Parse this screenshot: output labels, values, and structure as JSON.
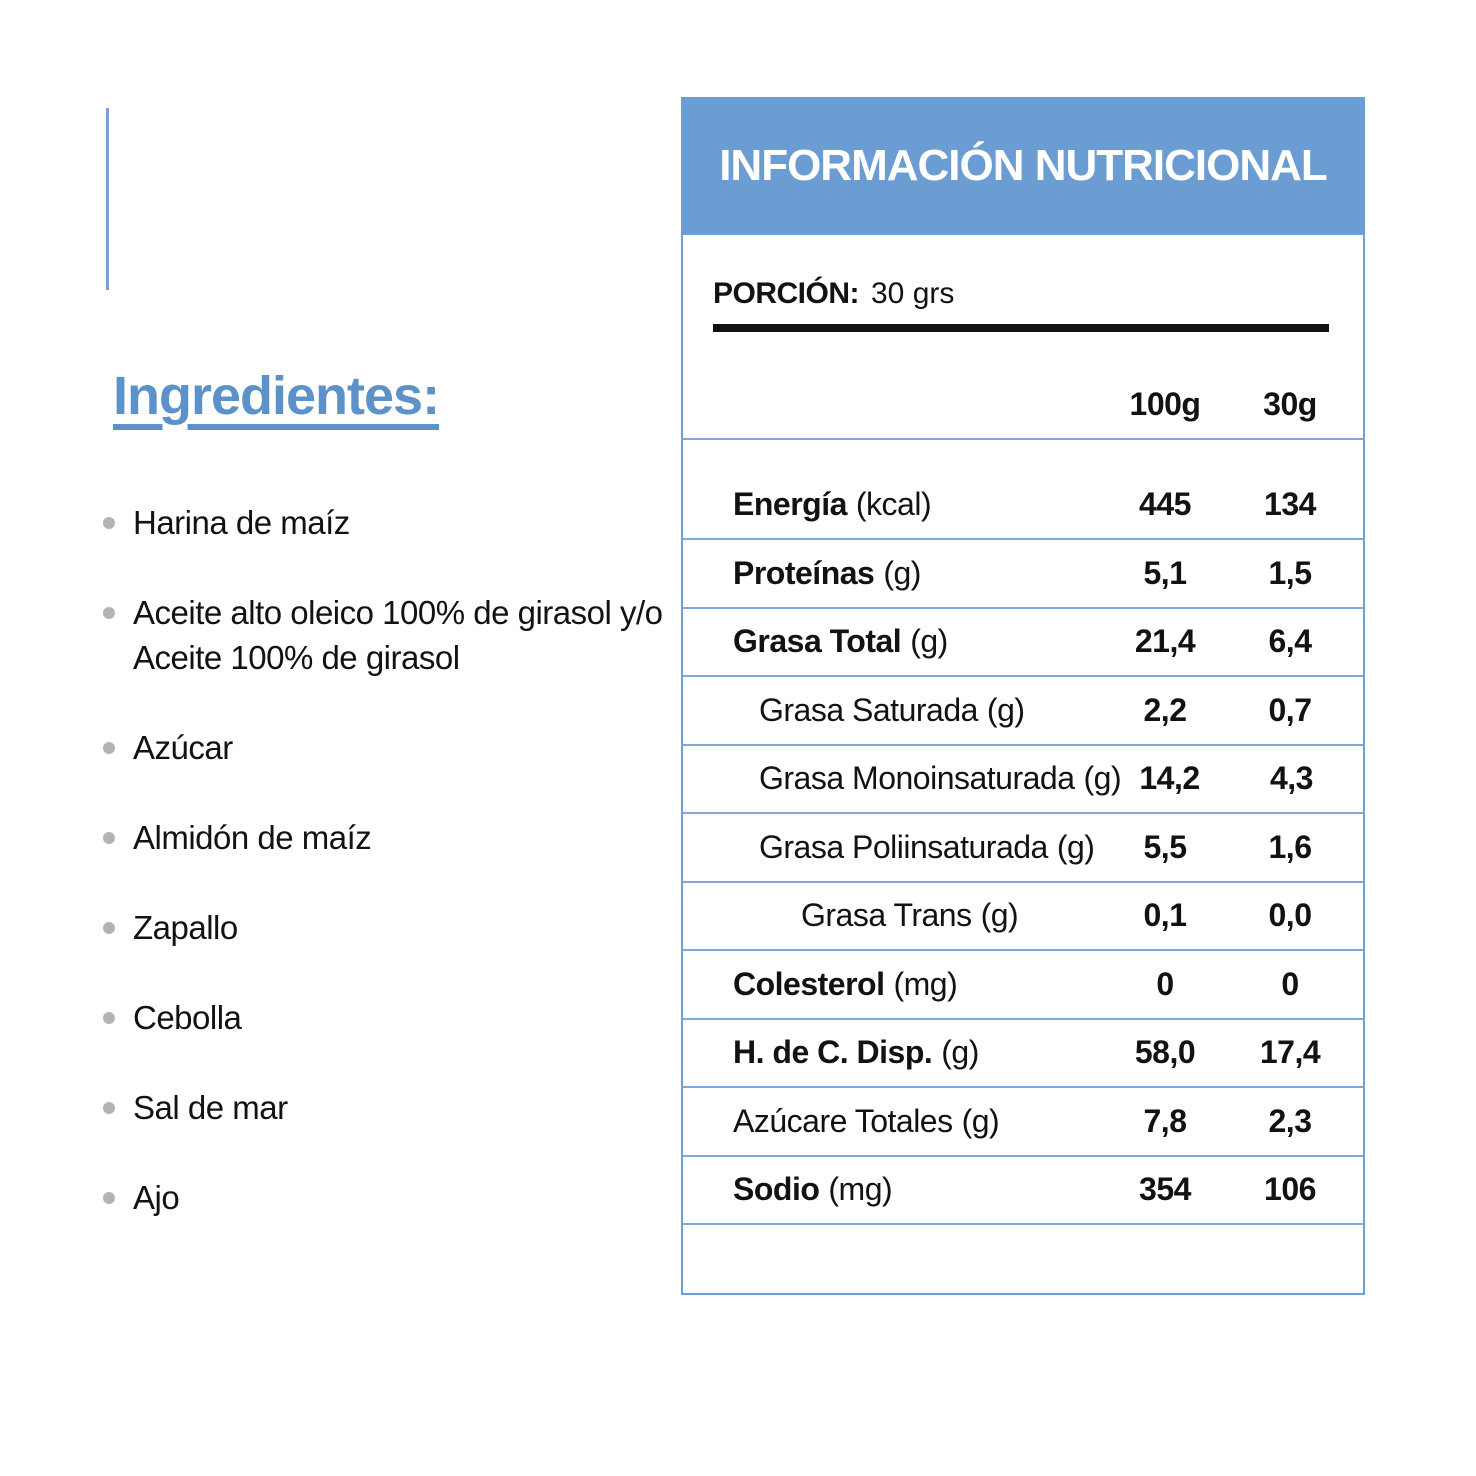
{
  "colors": {
    "header_blue": "#6b9dd2",
    "heading_blue": "#5d92c9",
    "divider_blue": "#7fa9d9",
    "border_blue": "#6fa0d3",
    "accent_line_blue": "#7ba2cc",
    "bullet_gray": "#b3b3b6",
    "text_black": "#121212"
  },
  "ingredients": {
    "title": "Ingredientes:",
    "items": [
      "Harina de maíz",
      "Aceite alto oleico 100% de girasol y/o Aceite 100% de girasol",
      "Azúcar",
      "Almidón de maíz",
      "Zapallo",
      "Cebolla",
      "Sal de mar",
      "Ajo"
    ]
  },
  "nutrition": {
    "title": "INFORMACIÓN NUTRICIONAL",
    "portion_label": "PORCIÓN:",
    "portion_value": "30 grs",
    "columns": [
      "100g",
      "30g"
    ],
    "rows": [
      {
        "name": "Energía",
        "unit": "(kcal)",
        "v100": "445",
        "v30": "134",
        "bold": true,
        "indent": 0
      },
      {
        "name": "Proteínas",
        "unit": "(g)",
        "v100": "5,1",
        "v30": "1,5",
        "bold": true,
        "indent": 0
      },
      {
        "name": "Grasa Total",
        "unit": "(g)",
        "v100": "21,4",
        "v30": "6,4",
        "bold": true,
        "indent": 0
      },
      {
        "name": "Grasa Saturada",
        "unit": "(g)",
        "v100": "2,2",
        "v30": "0,7",
        "bold": false,
        "indent": 1
      },
      {
        "name": "Grasa Monoinsaturada",
        "unit": "(g)",
        "v100": "14,2",
        "v30": "4,3",
        "bold": false,
        "indent": 1
      },
      {
        "name": "Grasa Poliinsaturada",
        "unit": "(g)",
        "v100": "5,5",
        "v30": "1,6",
        "bold": false,
        "indent": 1
      },
      {
        "name": "Grasa Trans",
        "unit": "(g)",
        "v100": "0,1",
        "v30": "0,0",
        "bold": false,
        "indent": 2
      },
      {
        "name": "Colesterol",
        "unit": "(mg)",
        "v100": "0",
        "v30": "0",
        "bold": true,
        "indent": 0
      },
      {
        "name": "H. de C. Disp.",
        "unit": "(g)",
        "v100": "58,0",
        "v30": "17,4",
        "bold": true,
        "indent": 0
      },
      {
        "name": "Azúcare Totales",
        "unit": "(g)",
        "v100": "7,8",
        "v30": "2,3",
        "bold": false,
        "indent": 0
      },
      {
        "name": "Sodio",
        "unit": "(mg)",
        "v100": "354",
        "v30": "106",
        "bold": true,
        "indent": 0
      }
    ]
  }
}
